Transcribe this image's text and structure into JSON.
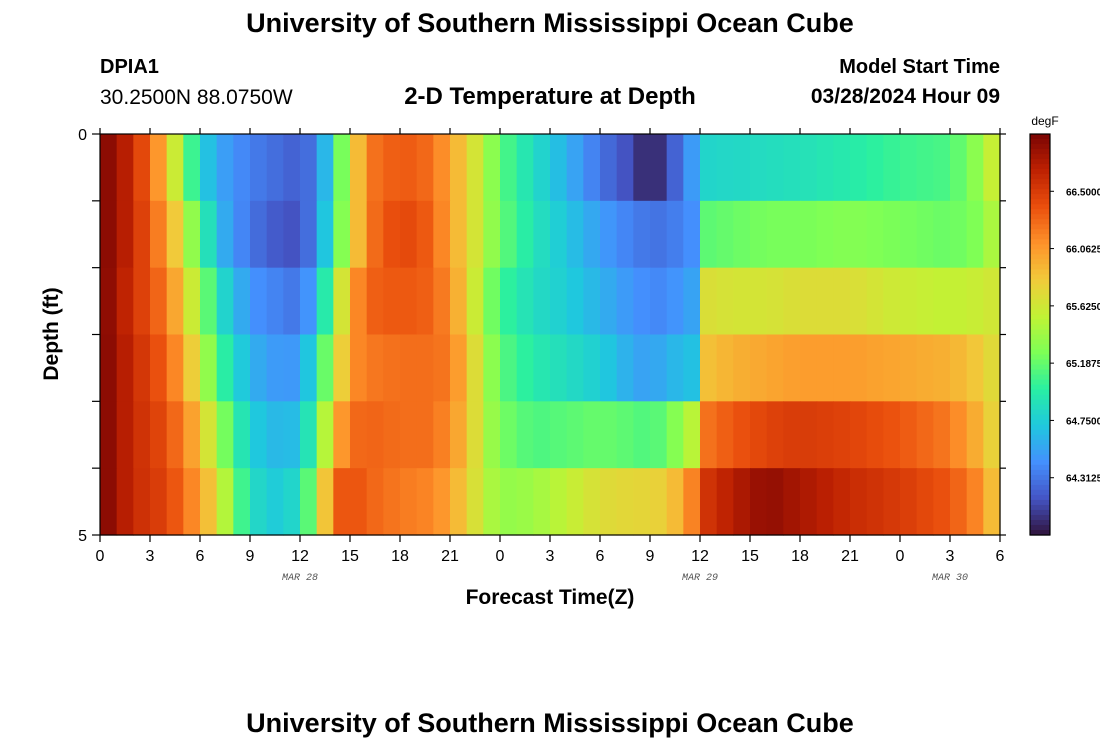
{
  "header": {
    "title": "University of Southern Mississippi Ocean Cube",
    "station": "DPIA1",
    "coords": "30.2500N  88.0750W",
    "subtitle": "2-D Temperature at Depth",
    "model_start_label": "Model Start Time",
    "model_start_value": "03/28/2024 Hour 09"
  },
  "footer": {
    "title": "University of Southern Mississippi Ocean Cube"
  },
  "chart_data": {
    "type": "heatmap",
    "title": "2-D Temperature at Depth",
    "xlabel": "Forecast Time(Z)",
    "ylabel": "Depth (ft)",
    "x_ticks": [
      "0",
      "3",
      "6",
      "9",
      "12",
      "15",
      "18",
      "21",
      "0",
      "3",
      "6",
      "9",
      "12",
      "15",
      "18",
      "21",
      "0",
      "3",
      "6"
    ],
    "x_tick_hours": [
      0,
      3,
      6,
      9,
      12,
      15,
      18,
      21,
      24,
      27,
      30,
      33,
      36,
      39,
      42,
      45,
      48,
      51,
      54
    ],
    "x_range_hours": [
      0,
      54
    ],
    "date_labels": [
      {
        "text": "MAR 28",
        "hour": 12
      },
      {
        "text": "MAR 29",
        "hour": 36
      },
      {
        "text": "MAR 30",
        "hour": 51
      }
    ],
    "y_ticks": [
      "0",
      "5"
    ],
    "y_range": [
      0,
      5
    ],
    "depth_layers": [
      0,
      1,
      2,
      3,
      4,
      5
    ],
    "colorbar": {
      "unit": "degF",
      "min": 63.875,
      "max": 66.9375,
      "labels": [
        "66.5000",
        "66.0625",
        "65.6250",
        "65.1875",
        "64.7500",
        "64.3125"
      ],
      "label_values": [
        66.5,
        66.0625,
        65.625,
        65.1875,
        64.75,
        64.3125
      ],
      "colormap": [
        "#30123b",
        "#4454c4",
        "#4490fe",
        "#1fc8de",
        "#29efa2",
        "#7dff56",
        "#c1f334",
        "#f1ca3a",
        "#fe922a",
        "#ea4f0d",
        "#be2102",
        "#7a0403"
      ]
    },
    "keyframes": [
      {
        "hour": 0,
        "temps": [
          66.95,
          66.95,
          66.95,
          66.95,
          66.95,
          66.95
        ]
      },
      {
        "hour": 2,
        "temps": [
          66.6,
          66.6,
          66.55,
          66.6,
          66.6,
          66.6
        ]
      },
      {
        "hour": 4,
        "temps": [
          65.9,
          66.05,
          66.2,
          66.3,
          66.4,
          66.45
        ]
      },
      {
        "hour": 5,
        "temps": [
          65.3,
          65.6,
          65.8,
          66.0,
          66.15,
          66.25
        ]
      },
      {
        "hour": 6,
        "temps": [
          64.8,
          65.1,
          65.4,
          65.6,
          65.9,
          66.05
        ]
      },
      {
        "hour": 7,
        "temps": [
          64.55,
          64.65,
          64.9,
          65.1,
          65.4,
          65.7
        ]
      },
      {
        "hour": 9,
        "temps": [
          64.35,
          64.3,
          64.45,
          64.6,
          64.75,
          64.85
        ]
      },
      {
        "hour": 11,
        "temps": [
          64.25,
          64.15,
          64.35,
          64.45,
          64.6,
          64.7
        ]
      },
      {
        "hour": 12,
        "temps": [
          64.2,
          64.15,
          64.3,
          64.5,
          64.7,
          64.9
        ]
      },
      {
        "hour": 13,
        "temps": [
          64.35,
          64.4,
          64.6,
          64.9,
          65.1,
          65.4
        ]
      },
      {
        "hour": 14,
        "temps": [
          64.9,
          65.0,
          65.3,
          65.5,
          65.9,
          66.3
        ]
      },
      {
        "hour": 15,
        "temps": [
          65.6,
          65.6,
          66.0,
          66.1,
          66.25,
          66.4
        ]
      },
      {
        "hour": 16,
        "temps": [
          66.2,
          66.2,
          66.3,
          66.2,
          66.3,
          66.3
        ]
      },
      {
        "hour": 18,
        "temps": [
          66.35,
          66.45,
          66.35,
          66.25,
          66.25,
          66.2
        ]
      },
      {
        "hour": 20,
        "temps": [
          66.25,
          66.3,
          66.3,
          66.25,
          66.25,
          66.15
        ]
      },
      {
        "hour": 21,
        "temps": [
          66.0,
          66.0,
          66.1,
          66.2,
          66.1,
          66.0
        ]
      },
      {
        "hour": 22,
        "temps": [
          65.8,
          65.8,
          65.8,
          65.9,
          65.9,
          65.8
        ]
      },
      {
        "hour": 23,
        "temps": [
          65.5,
          65.5,
          65.4,
          65.5,
          65.5,
          65.55
        ]
      },
      {
        "hour": 24,
        "temps": [
          65.15,
          65.2,
          65.05,
          65.15,
          65.25,
          65.35
        ]
      },
      {
        "hour": 26,
        "temps": [
          64.85,
          64.9,
          64.85,
          64.95,
          65.1,
          65.4
        ]
      },
      {
        "hour": 28,
        "temps": [
          64.6,
          64.7,
          64.75,
          64.85,
          65.15,
          65.55
        ]
      },
      {
        "hour": 30,
        "temps": [
          64.3,
          64.5,
          64.6,
          64.75,
          65.2,
          65.7
        ]
      },
      {
        "hour": 32,
        "temps": [
          64.1,
          64.35,
          64.45,
          64.55,
          65.15,
          65.75
        ]
      },
      {
        "hour": 33,
        "temps": [
          63.9,
          64.3,
          64.4,
          64.5,
          65.1,
          65.75
        ]
      },
      {
        "hour": 34,
        "temps": [
          64.1,
          64.3,
          64.4,
          64.6,
          65.2,
          65.8
        ]
      },
      {
        "hour": 35,
        "temps": [
          64.35,
          64.4,
          64.5,
          64.65,
          65.4,
          66.0
        ]
      },
      {
        "hour": 35.9,
        "temps": [
          64.6,
          64.45,
          64.55,
          64.7,
          65.6,
          66.3
        ]
      },
      {
        "hour": 36,
        "temps": [
          64.8,
          65.15,
          65.7,
          65.85,
          66.2,
          66.5
        ]
      },
      {
        "hour": 38,
        "temps": [
          64.82,
          65.2,
          65.65,
          65.95,
          66.35,
          66.7
        ]
      },
      {
        "hour": 40,
        "temps": [
          64.85,
          65.25,
          65.65,
          66.0,
          66.45,
          66.85
        ]
      },
      {
        "hour": 42,
        "temps": [
          64.88,
          65.25,
          65.7,
          66.05,
          66.5,
          66.75
        ]
      },
      {
        "hour": 45,
        "temps": [
          64.95,
          65.3,
          65.7,
          66.05,
          66.45,
          66.6
        ]
      },
      {
        "hour": 48,
        "temps": [
          65.05,
          65.25,
          65.6,
          66.0,
          66.35,
          66.5
        ]
      },
      {
        "hour": 51,
        "temps": [
          65.1,
          65.2,
          65.55,
          65.95,
          66.2,
          66.35
        ]
      },
      {
        "hour": 53,
        "temps": [
          65.4,
          65.3,
          65.6,
          65.8,
          65.9,
          66.1
        ]
      },
      {
        "hour": 54,
        "temps": [
          65.75,
          65.6,
          65.65,
          65.65,
          65.65,
          65.7
        ]
      }
    ]
  }
}
